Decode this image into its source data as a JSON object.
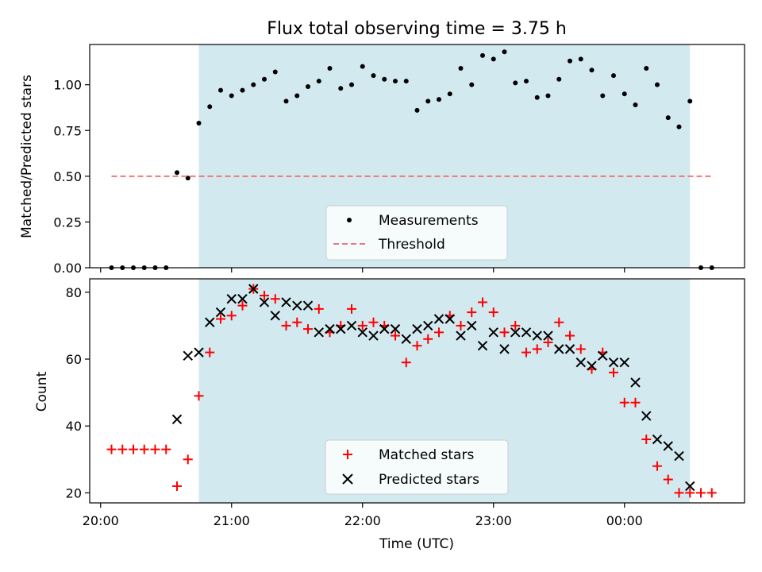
{
  "chart_data": [
    {
      "type": "scatter",
      "title": "Flux total observing time = 3.75 h",
      "xlabel": "",
      "ylabel": "Matched/Predicted stars",
      "xlim": [
        "19:55",
        "00:55"
      ],
      "ylim": [
        0,
        1.22
      ],
      "yticks": [
        "0.00",
        "0.25",
        "0.50",
        "0.75",
        "1.00"
      ],
      "grid": false,
      "shaded_interval": [
        "20:45",
        "00:30"
      ],
      "shaded_color": "#d3e9f0",
      "legend_position": "lower center",
      "series": [
        {
          "name": "Measurements",
          "marker": "dot",
          "color": "#000000",
          "x": [
            "20:05",
            "20:10",
            "20:15",
            "20:20",
            "20:25",
            "20:30",
            "20:35",
            "20:40",
            "20:45",
            "20:50",
            "20:55",
            "21:00",
            "21:05",
            "21:10",
            "21:15",
            "21:20",
            "21:25",
            "21:30",
            "21:35",
            "21:40",
            "21:45",
            "21:50",
            "21:55",
            "22:00",
            "22:05",
            "22:10",
            "22:15",
            "22:20",
            "22:25",
            "22:30",
            "22:35",
            "22:40",
            "22:45",
            "22:50",
            "22:55",
            "23:00",
            "23:05",
            "23:10",
            "23:15",
            "23:20",
            "23:25",
            "23:30",
            "23:35",
            "23:40",
            "23:45",
            "23:50",
            "23:55",
            "00:00",
            "00:05",
            "00:10",
            "00:15",
            "00:20",
            "00:25",
            "00:30",
            "00:35",
            "00:40"
          ],
          "y": [
            0,
            0,
            0,
            0,
            0,
            0,
            0.52,
            0.49,
            0.79,
            0.88,
            0.97,
            0.94,
            0.97,
            1.0,
            1.03,
            1.07,
            0.91,
            0.94,
            0.99,
            1.02,
            1.09,
            0.98,
            1.0,
            1.1,
            1.05,
            1.03,
            1.02,
            1.02,
            0.86,
            0.91,
            0.92,
            0.95,
            1.09,
            1.0,
            1.16,
            1.14,
            1.18,
            1.01,
            1.02,
            0.93,
            0.94,
            1.03,
            1.13,
            1.14,
            1.08,
            0.94,
            1.05,
            0.95,
            0.89,
            1.09,
            1.0,
            0.82,
            0.77,
            0.91,
            0,
            0
          ]
        },
        {
          "name": "Threshold",
          "style": "dashed",
          "color": "#f07878",
          "x": [
            "20:05",
            "00:40"
          ],
          "y": [
            0.5,
            0.5
          ]
        }
      ]
    },
    {
      "type": "scatter",
      "title": "",
      "xlabel": "Time (UTC)",
      "ylabel": "Count",
      "xlim": [
        "19:55",
        "00:55"
      ],
      "ylim": [
        17,
        84
      ],
      "xticks": [
        "20:00",
        "21:00",
        "22:00",
        "23:00",
        "00:00"
      ],
      "yticks": [
        "20",
        "40",
        "60",
        "80"
      ],
      "grid": false,
      "shaded_interval": [
        "20:45",
        "00:30"
      ],
      "shaded_color": "#d3e9f0",
      "legend_position": "lower center",
      "series": [
        {
          "name": "Matched stars",
          "marker": "plus",
          "color": "#ff0000",
          "x": [
            "20:05",
            "20:10",
            "20:15",
            "20:20",
            "20:25",
            "20:30",
            "20:35",
            "20:40",
            "20:45",
            "20:50",
            "20:55",
            "21:00",
            "21:05",
            "21:10",
            "21:15",
            "21:20",
            "21:25",
            "21:30",
            "21:35",
            "21:40",
            "21:45",
            "21:50",
            "21:55",
            "22:00",
            "22:05",
            "22:10",
            "22:15",
            "22:20",
            "22:25",
            "22:30",
            "22:35",
            "22:40",
            "22:45",
            "22:50",
            "22:55",
            "23:00",
            "23:05",
            "23:10",
            "23:15",
            "23:20",
            "23:25",
            "23:30",
            "23:35",
            "23:40",
            "23:45",
            "23:50",
            "23:55",
            "00:00",
            "00:05",
            "00:10",
            "00:15",
            "00:20",
            "00:25",
            "00:30",
            "00:35",
            "00:40"
          ],
          "y": [
            33,
            33,
            33,
            33,
            33,
            33,
            22,
            30,
            49,
            62,
            72,
            73,
            76,
            81,
            79,
            78,
            70,
            71,
            69,
            75,
            68,
            70,
            75,
            70,
            71,
            70,
            67,
            59,
            64,
            66,
            68,
            73,
            70,
            74,
            77,
            74,
            68,
            70,
            62,
            63,
            65,
            71,
            67,
            63,
            57,
            62,
            56,
            47,
            47,
            36,
            28,
            24,
            20,
            20,
            20,
            20
          ]
        },
        {
          "name": "Predicted stars",
          "marker": "x",
          "color": "#000000",
          "x": [
            "20:35",
            "20:40",
            "20:45",
            "20:50",
            "20:55",
            "21:00",
            "21:05",
            "21:10",
            "21:15",
            "21:20",
            "21:25",
            "21:30",
            "21:35",
            "21:40",
            "21:45",
            "21:50",
            "21:55",
            "22:00",
            "22:05",
            "22:10",
            "22:15",
            "22:20",
            "22:25",
            "22:30",
            "22:35",
            "22:40",
            "22:45",
            "22:50",
            "22:55",
            "23:00",
            "23:05",
            "23:10",
            "23:15",
            "23:20",
            "23:25",
            "23:30",
            "23:35",
            "23:40",
            "23:45",
            "23:50",
            "23:55",
            "00:00",
            "00:05",
            "00:10",
            "00:15",
            "00:20",
            "00:25",
            "00:30"
          ],
          "y": [
            42,
            61,
            62,
            71,
            74,
            78,
            78,
            81,
            77,
            73,
            77,
            76,
            76,
            68,
            69,
            69,
            70,
            68,
            67,
            69,
            69,
            66,
            69,
            70,
            72,
            72,
            67,
            70,
            64,
            68,
            63,
            68,
            68,
            67,
            67,
            63,
            63,
            59,
            58,
            61,
            59,
            59,
            53,
            43,
            36,
            34,
            31,
            22
          ]
        }
      ]
    }
  ]
}
